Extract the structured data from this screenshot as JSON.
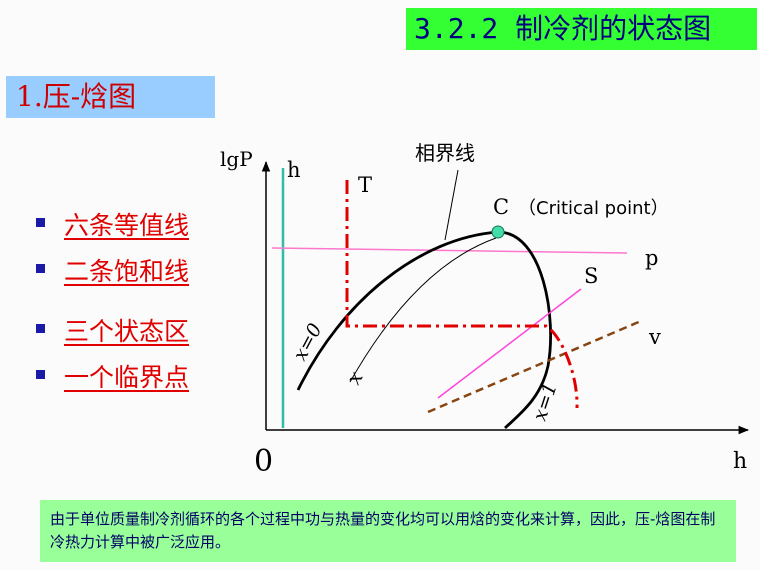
{
  "title": "3.2.2 制冷剂的状态图",
  "section": "1.压-焓图",
  "bullets": [
    "六条等值线",
    "二条饱和线",
    "三个状态区",
    "一个临界点"
  ],
  "diagram": {
    "y_axis_label": "lgP",
    "x_axis_label": "h",
    "origin_label": "0",
    "phase_boundary_label": "相界线",
    "critical_point_letter": "C",
    "critical_point_note": "（Critical point）",
    "isenthalpic_label": "h",
    "isotherm_label": "T",
    "isobar_label": "p",
    "isentrope_label": "S",
    "isochore_label": "v",
    "saturated_liquid_label": "x=0",
    "saturated_vapor_label": "x=1",
    "quality_line_label": "x"
  },
  "footer_text": "由于单位质量制冷剂循环的各个过程中功与热量的变化均可以用焓的变化来计算，因此，压-焓图在制冷热力计算中被广泛应用。",
  "colors": {
    "title_bg": "#33ff33",
    "section_bg": "#99ccff",
    "footer_bg": "#99ff99",
    "bullet_text": "#e00000",
    "isotherm": "#e00000",
    "isobar": "#ff77cc",
    "isentrope": "#ff44dd",
    "isochore": "#884411",
    "isenthalpic": "#33bbaa",
    "critical_point": "#44ddaa"
  }
}
